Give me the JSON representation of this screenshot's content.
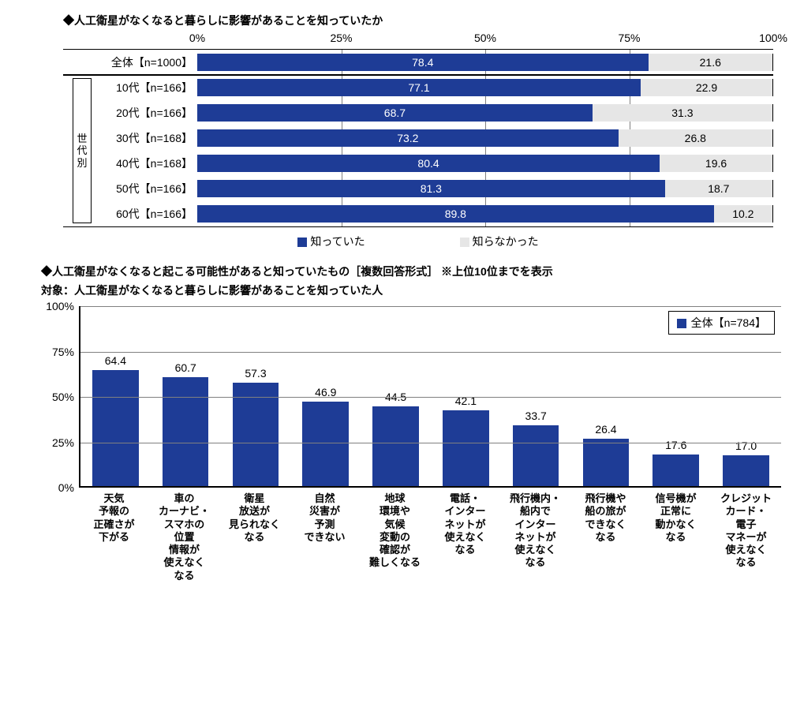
{
  "colors": {
    "primary": "#1e3c96",
    "secondary": "#e6e6e6",
    "grid": "#808080",
    "axis": "#000000",
    "text_on_primary": "#ffffff",
    "text_on_secondary": "#000000"
  },
  "chart1": {
    "title": "◆人工衛星がなくなると暮らしに影響があることを知っていたか",
    "type": "stacked-horizontal-bar",
    "xaxis": {
      "min": 0,
      "max": 100,
      "ticks": [
        0,
        25,
        50,
        75,
        100
      ],
      "tick_labels": [
        "0%",
        "25%",
        "50%",
        "75%",
        "100%"
      ]
    },
    "series": [
      {
        "key": "knew",
        "label": "知っていた",
        "color": "#1e3c96"
      },
      {
        "key": "didnt",
        "label": "知らなかった",
        "color": "#e6e6e6"
      }
    ],
    "separator_after_index": 0,
    "side_group": {
      "label": "世代別",
      "from_index": 1,
      "to_index": 6
    },
    "rows": [
      {
        "label": "全体【n=1000】",
        "knew": 78.4,
        "didnt": 21.6
      },
      {
        "label": "10代【n=166】",
        "knew": 77.1,
        "didnt": 22.9
      },
      {
        "label": "20代【n=166】",
        "knew": 68.7,
        "didnt": 31.3
      },
      {
        "label": "30代【n=168】",
        "knew": 73.2,
        "didnt": 26.8
      },
      {
        "label": "40代【n=168】",
        "knew": 80.4,
        "didnt": 19.6
      },
      {
        "label": "50代【n=166】",
        "knew": 81.3,
        "didnt": 18.7
      },
      {
        "label": "60代【n=166】",
        "knew": 89.8,
        "didnt": 10.2
      }
    ]
  },
  "chart2": {
    "title": "◆人工衛星がなくなると起こる可能性があると知っていたもの［複数回答形式］ ※上位10位までを表示",
    "subtitle": "対象：人工衛星がなくなると暮らしに影響があることを知っていた人",
    "type": "bar",
    "legend_label": "全体【n=784】",
    "bar_color": "#1e3c96",
    "yaxis": {
      "min": 0,
      "max": 100,
      "ticks": [
        0,
        25,
        50,
        75,
        100
      ],
      "tick_labels": [
        "0%",
        "25%",
        "50%",
        "75%",
        "100%"
      ]
    },
    "bars": [
      {
        "label": "天気\n予報の\n正確さが\n下がる",
        "value": 64.4
      },
      {
        "label": "車の\nカーナビ・\nスマホの\n位置\n情報が\n使えなく\nなる",
        "value": 60.7
      },
      {
        "label": "衛星\n放送が\n見られなく\nなる",
        "value": 57.3
      },
      {
        "label": "自然\n災害が\n予測\nできない",
        "value": 46.9
      },
      {
        "label": "地球\n環境や\n気候\n変動の\n確認が\n難しくなる",
        "value": 44.5
      },
      {
        "label": "電話・\nインター\nネットが\n使えなく\nなる",
        "value": 42.1
      },
      {
        "label": "飛行機内・\n船内で\nインター\nネットが\n使えなく\nなる",
        "value": 33.7
      },
      {
        "label": "飛行機や\n船の旅が\nできなく\nなる",
        "value": 26.4
      },
      {
        "label": "信号機が\n正常に\n動かなく\nなる",
        "value": 17.6
      },
      {
        "label": "クレジット\nカード・\n電子\nマネーが\n使えなく\nなる",
        "value": 17.0
      }
    ]
  }
}
